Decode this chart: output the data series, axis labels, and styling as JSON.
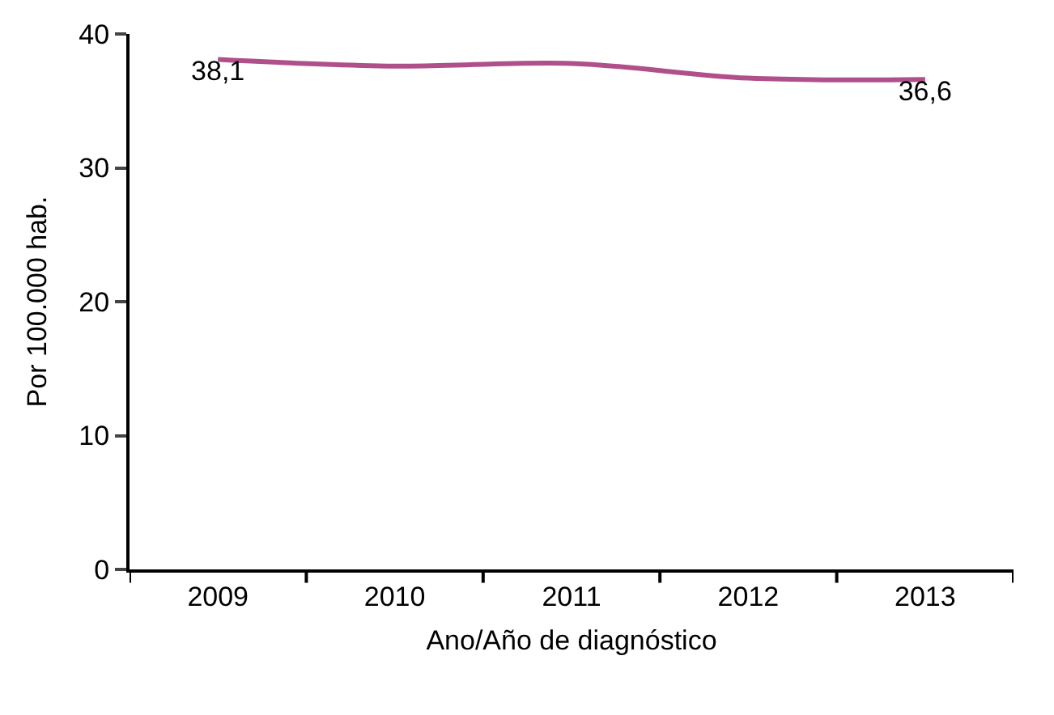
{
  "chart_data": {
    "type": "line",
    "xlabel": "Ano/Año de diagnóstico",
    "ylabel": "Por 100.000 hab.",
    "categories": [
      "2009",
      "2010",
      "2011",
      "2012",
      "2013"
    ],
    "series": [
      {
        "color": "#b0508a",
        "values": [
          38.1,
          37.6,
          37.8,
          36.7,
          36.6
        ],
        "value_labels": [
          "38,1",
          null,
          null,
          null,
          "36,6"
        ]
      }
    ],
    "ylim": [
      0,
      40
    ],
    "yticks": [
      0,
      10,
      20,
      30,
      40
    ],
    "marker": "none",
    "line_style": "solid"
  }
}
